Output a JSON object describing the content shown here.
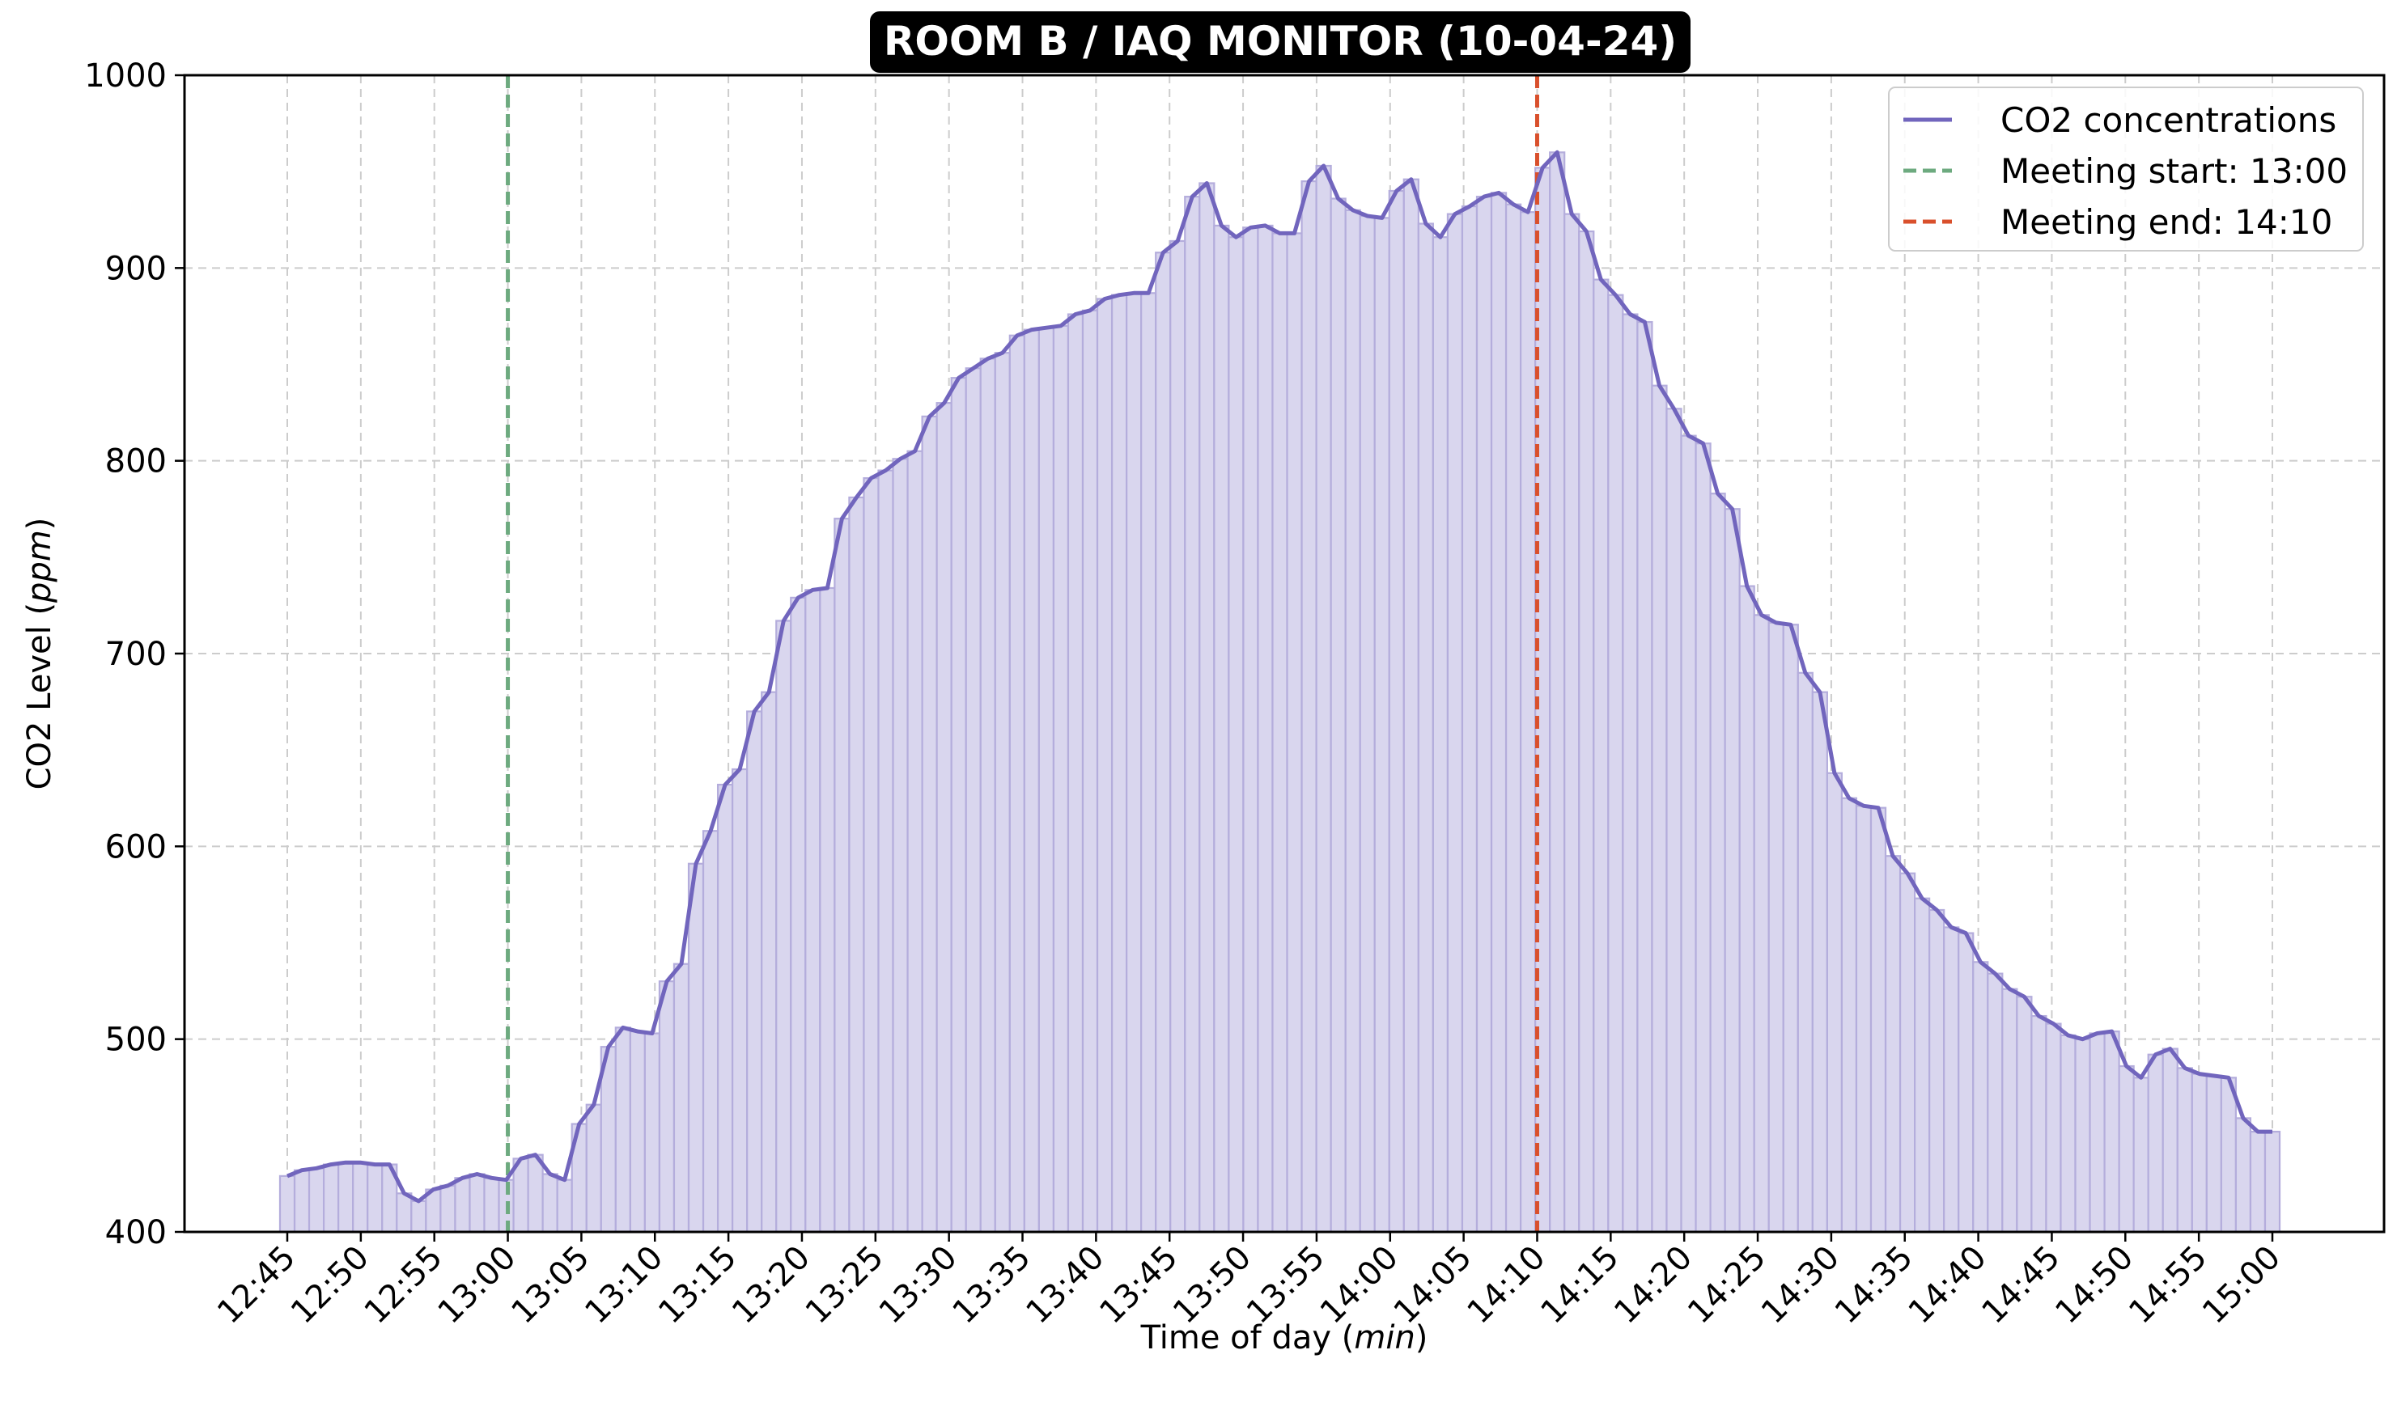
{
  "chart_data": {
    "type": "bar",
    "title": "ROOM B / IAQ MONITOR (10-04-24)",
    "xlabel": "Time of day",
    "xlabel_unit": "min",
    "ylabel": "CO2 Level",
    "ylabel_unit": "ppm",
    "ylim": [
      400,
      1000
    ],
    "yticks": [
      "400",
      "500",
      "600",
      "700",
      "800",
      "900",
      "1000"
    ],
    "xticks": [
      "12:45",
      "12:50",
      "12:55",
      "13:00",
      "13:05",
      "13:10",
      "13:15",
      "13:20",
      "13:25",
      "13:30",
      "13:35",
      "13:40",
      "13:45",
      "13:50",
      "13:55",
      "14:00",
      "14:05",
      "14:10",
      "14:15",
      "14:20",
      "14:25",
      "14:30",
      "14:35",
      "14:40",
      "14:45",
      "14:50",
      "14:55",
      "15:00"
    ],
    "grid": true,
    "legend_position": "top-right",
    "x_start": "12:45",
    "x_end": "15:00",
    "series": [
      {
        "name": "CO2 concentrations",
        "color": "#7165BD",
        "values": [
          429,
          432,
          433,
          435,
          436,
          436,
          435,
          435,
          420,
          416,
          422,
          424,
          428,
          430,
          428,
          427,
          438,
          440,
          430,
          427,
          456,
          466,
          496,
          506,
          504,
          503,
          530,
          539,
          591,
          608,
          632,
          640,
          670,
          680,
          717,
          729,
          733,
          734,
          770,
          781,
          791,
          795,
          801,
          805,
          823,
          830,
          843,
          848,
          853,
          856,
          865,
          868,
          869,
          870,
          876,
          878,
          884,
          886,
          887,
          887,
          908,
          914,
          937,
          944,
          922,
          916,
          921,
          922,
          918,
          918,
          945,
          953,
          936,
          930,
          927,
          926,
          940,
          946,
          923,
          916,
          928,
          932,
          937,
          939,
          933,
          929,
          952,
          960,
          928,
          919,
          894,
          886,
          876,
          872,
          839,
          827,
          813,
          809,
          783,
          775,
          735,
          720,
          716,
          715,
          690,
          680,
          638,
          625,
          621,
          620,
          595,
          586,
          573,
          567,
          558,
          555,
          540,
          534,
          526,
          522,
          512,
          508,
          502,
          500,
          503,
          504,
          486,
          480,
          492,
          495,
          485,
          482,
          481,
          480,
          459,
          452,
          452
        ]
      }
    ],
    "vlines": [
      {
        "label": "Meeting start: 13:00",
        "time": "13:00",
        "color": "#6DAA7F"
      },
      {
        "label": "Meeting end: 14:10",
        "time": "14:10",
        "color": "#D9502C"
      }
    ],
    "bar_fill_color": "#D9D6EE",
    "bar_edge_color": "#B4ADDC"
  }
}
